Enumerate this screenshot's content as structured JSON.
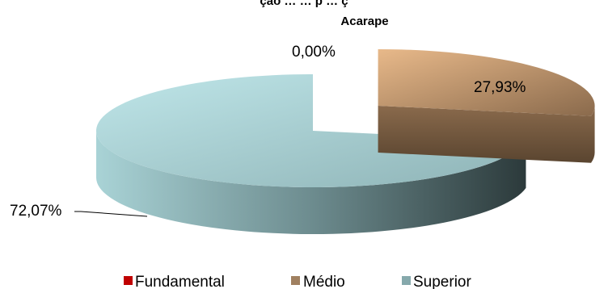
{
  "chart_data": {
    "type": "pie",
    "title_lines": [
      "ção … … p … ç",
      "Acarape"
    ],
    "slices": [
      {
        "name": "Fundamental",
        "value": 0.0,
        "label": "0,00%",
        "color": "#c00000"
      },
      {
        "name": "Médio",
        "value": 27.93,
        "label": "27,93%",
        "color": "#c9a47a"
      },
      {
        "name": "Superior",
        "value": 72.07,
        "label": "72,07%",
        "color": "#a9d3d6"
      }
    ],
    "legend_placement": "bottom",
    "exploded_slices": [
      "Médio"
    ]
  }
}
